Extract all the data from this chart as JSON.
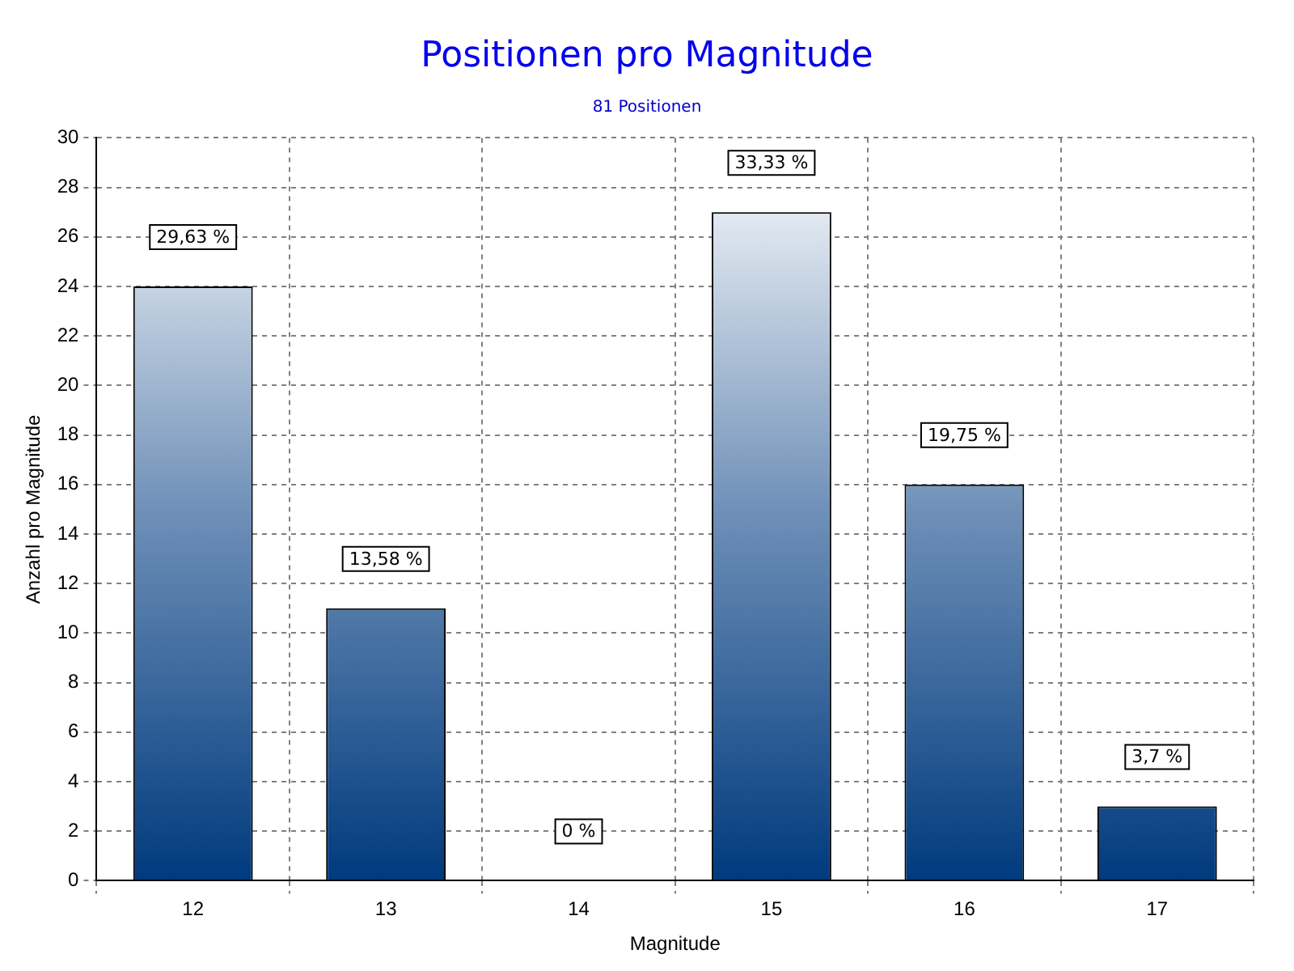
{
  "chart_data": {
    "type": "bar",
    "title": "Positionen pro Magnitude",
    "subtitle": "81 Positionen",
    "xlabel": "Magnitude",
    "ylabel": "Anzahl pro Magnitude",
    "categories": [
      "12",
      "13",
      "14",
      "15",
      "16",
      "17"
    ],
    "values": [
      24,
      11,
      0,
      27,
      16,
      3
    ],
    "annotations": [
      {
        "text": "29,63 %",
        "x": "12",
        "y": 24
      },
      {
        "text": "13,58 %",
        "x": "13",
        "y": 11
      },
      {
        "text": "0 %",
        "x": "14",
        "y": 0
      },
      {
        "text": "33,33 %",
        "x": "15",
        "y": 27
      },
      {
        "text": "19,75 %",
        "x": "16",
        "y": 16
      },
      {
        "text": "3,7 %",
        "x": "17",
        "y": 3
      }
    ],
    "color": "#003a7d",
    "ylim": [
      0,
      30
    ],
    "yticks": [
      0,
      2,
      4,
      6,
      8,
      10,
      12,
      14,
      16,
      18,
      20,
      22,
      24,
      26,
      28,
      30
    ],
    "grid": true
  }
}
